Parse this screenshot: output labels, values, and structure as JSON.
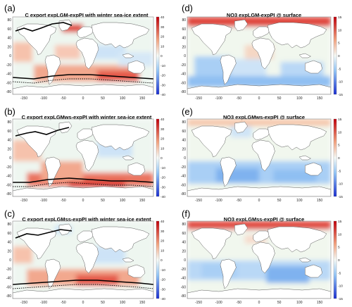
{
  "panels": [
    {
      "label": "(a)",
      "title": "C export expLGM-expPI with winter sea-ice extent",
      "colorbar": [
        "40",
        "30",
        "20",
        "10",
        "0",
        "-10",
        "-20",
        "-30",
        "-40"
      ]
    },
    {
      "label": "(b)",
      "title": "C export expLGMws-expPI with winter sea-ice extent",
      "colorbar": [
        "40",
        "30",
        "20",
        "10",
        "0",
        "-10",
        "-20",
        "-30",
        "-40"
      ]
    },
    {
      "label": "(c)",
      "title": "C export expLGMss-expPI with winter sea-ice extent",
      "colorbar": [
        "40",
        "30",
        "20",
        "10",
        "0",
        "-10",
        "-20",
        "-30",
        "-40"
      ]
    },
    {
      "label": "(d)",
      "title": "NO3 expLGM-expPI @ surface",
      "colorbar": [
        "15",
        "10",
        "5",
        "0",
        "-5",
        "-10",
        "-15"
      ]
    },
    {
      "label": "(e)",
      "title": "NO3 expLGMws-expPI @ surface",
      "colorbar": [
        "15",
        "10",
        "5",
        "0",
        "-5",
        "-10",
        "-15"
      ]
    },
    {
      "label": "(f)",
      "title": "NO3 expLGMss-expPI @ surface",
      "colorbar": [
        "15",
        "10",
        "5",
        "0",
        "-5",
        "-10",
        "-15"
      ]
    }
  ],
  "axes": {
    "lat_ticks": [
      "80",
      "60",
      "40",
      "20",
      "0",
      "-20",
      "-40",
      "-60",
      "-80"
    ],
    "lon_ticks": [
      "-150",
      "-100",
      "-50",
      "0",
      "50",
      "100",
      "150"
    ]
  },
  "colors": {
    "positive": "#d7301f",
    "negative": "#2c4fd7",
    "neutral": "#f4f9f1",
    "land": "#ffffff",
    "sea_ice_line": "#000000"
  }
}
